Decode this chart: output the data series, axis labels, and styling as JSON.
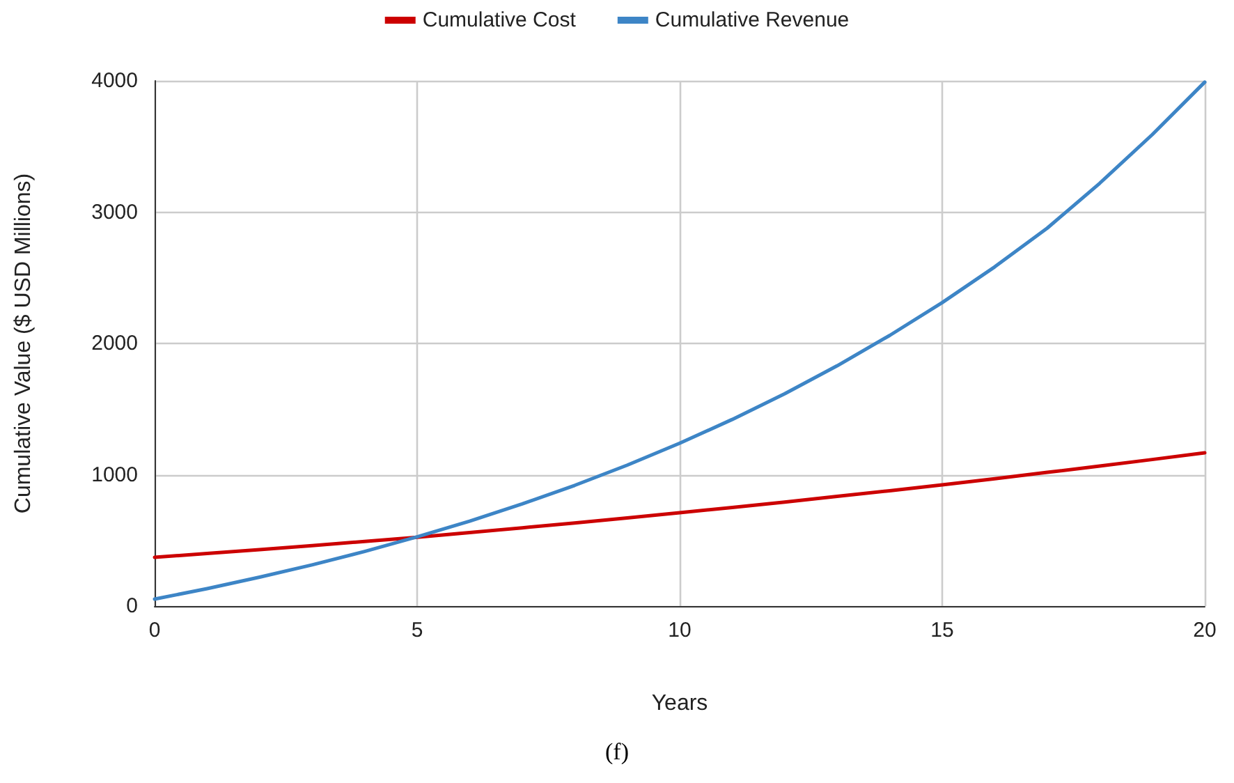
{
  "chart_data": {
    "type": "line",
    "xlabel": "Years",
    "ylabel": "Cumulative Value ($ USD Millions)",
    "x": [
      0,
      1,
      2,
      3,
      4,
      5,
      6,
      7,
      8,
      9,
      10,
      11,
      12,
      13,
      14,
      15,
      16,
      17,
      18,
      19,
      20
    ],
    "series": [
      {
        "name": "Cumulative Cost",
        "color": "#cc0000",
        "values": [
          371,
          400,
          430,
          460,
          492,
          524,
          560,
          596,
          633,
          671,
          711,
          751,
          792,
          835,
          878,
          923,
          970,
          1018,
          1066,
          1116,
          1167
        ]
      },
      {
        "name": "Cumulative Revenue",
        "color": "#3d85c6",
        "values": [
          53,
          133,
          220,
          314,
          416,
          527,
          647,
          778,
          919,
          1073,
          1240,
          1421,
          1617,
          1830,
          2061,
          2311,
          2583,
          2878,
          3220,
          3590,
          3990
        ]
      }
    ],
    "xlim": [
      0,
      20
    ],
    "xticks": [
      0,
      5,
      10,
      15,
      20
    ],
    "ylim": [
      0,
      4000
    ],
    "yticks": [
      0,
      1000,
      2000,
      3000,
      4000
    ],
    "grid": true,
    "legend": "top",
    "marker": "none",
    "line_style": "solid",
    "annotations": [
      "(f)"
    ]
  }
}
